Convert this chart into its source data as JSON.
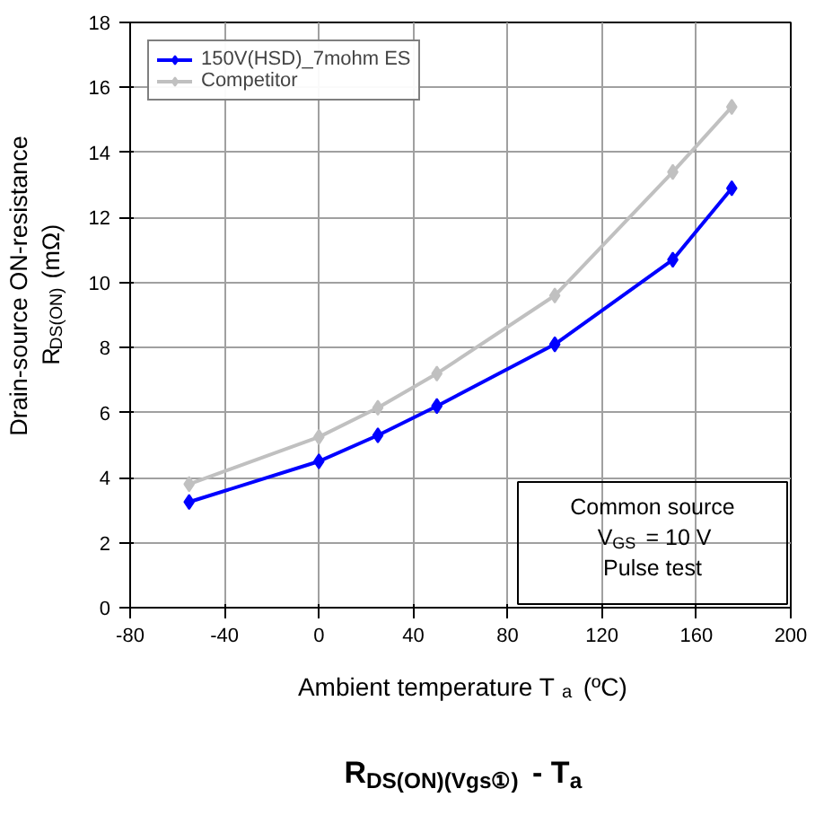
{
  "chart_data": {
    "type": "line",
    "title": "R$_{DS(ON)(Vgs①)}$ - T$_{a}$",
    "xlabel": "Ambient temperature  T$_{a}$ (ºC)",
    "ylabel": "Drain-source ON-resistance\nR$_{DS(ON)}$ (mΩ)",
    "x": [
      -55,
      0,
      25,
      50,
      100,
      150,
      175
    ],
    "series": [
      {
        "name": "150V(HSD)_7mohm ES",
        "color": "#0000ff",
        "values": [
          3.25,
          4.5,
          5.3,
          6.2,
          8.1,
          10.7,
          12.9
        ]
      },
      {
        "name": "Competitor",
        "color": "#c0c0c0",
        "values": [
          3.8,
          5.25,
          6.15,
          7.2,
          9.6,
          13.4,
          15.4
        ]
      }
    ],
    "xlim": [
      -80,
      200
    ],
    "xticks": [
      -80,
      -40,
      0,
      40,
      80,
      120,
      160,
      200
    ],
    "ylim": [
      0,
      18
    ],
    "yticks": [
      0,
      2,
      4,
      6,
      8,
      10,
      12,
      14,
      16,
      18
    ],
    "annotations": [
      "Common source\nV$_{GS}$ = 10 V\nPulse test"
    ],
    "grid": true,
    "legend": "top left",
    "marker": "diamond",
    "line_style": "solid"
  }
}
